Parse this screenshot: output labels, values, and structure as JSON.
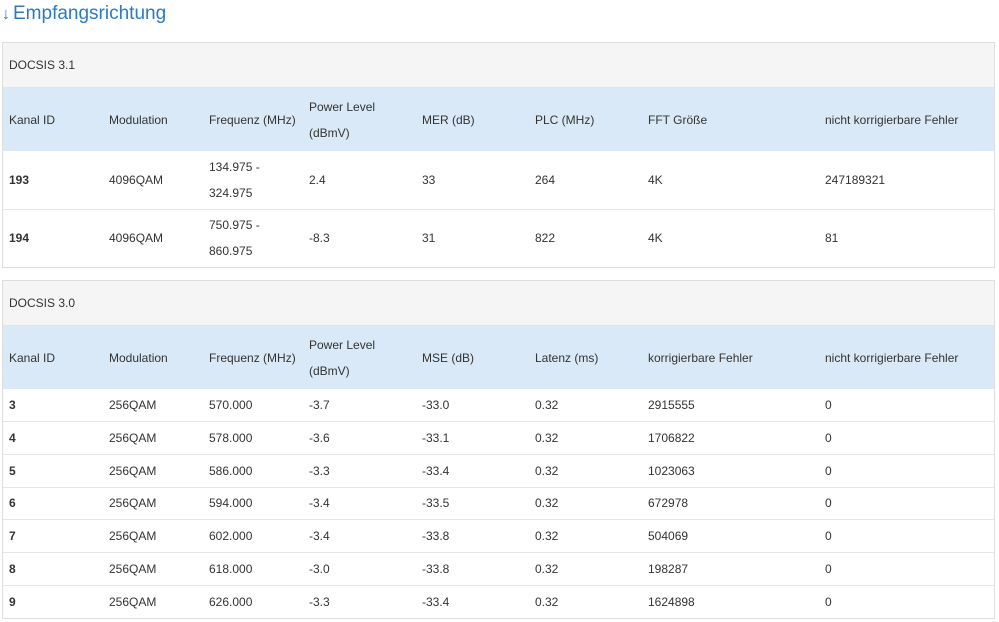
{
  "heading": {
    "arrow": "↓",
    "text": "Empfangsrichtung"
  },
  "docsis31": {
    "title": "DOCSIS 3.1",
    "columns": [
      "Kanal ID",
      "Modulation",
      "Frequenz (MHz)",
      "Power Level (dBmV)",
      "MER (dB)",
      "PLC (MHz)",
      "FFT Größe",
      "nicht korrigierbare Fehler"
    ],
    "rows": [
      [
        "193",
        "4096QAM",
        "134.975 - 324.975",
        "2.4",
        "33",
        "264",
        "4K",
        "247189321"
      ],
      [
        "194",
        "4096QAM",
        "750.975 - 860.975",
        "-8.3",
        "31",
        "822",
        "4K",
        "81"
      ]
    ]
  },
  "docsis30": {
    "title": "DOCSIS 3.0",
    "columns": [
      "Kanal ID",
      "Modulation",
      "Frequenz (MHz)",
      "Power Level (dBmV)",
      "MSE (dB)",
      "Latenz (ms)",
      "korrigierbare Fehler",
      "nicht korrigierbare Fehler"
    ],
    "rows": [
      [
        "3",
        "256QAM",
        "570.000",
        "-3.7",
        "-33.0",
        "0.32",
        "2915555",
        "0"
      ],
      [
        "4",
        "256QAM",
        "578.000",
        "-3.6",
        "-33.1",
        "0.32",
        "1706822",
        "0"
      ],
      [
        "5",
        "256QAM",
        "586.000",
        "-3.3",
        "-33.4",
        "0.32",
        "1023063",
        "0"
      ],
      [
        "6",
        "256QAM",
        "594.000",
        "-3.4",
        "-33.5",
        "0.32",
        "672978",
        "0"
      ],
      [
        "7",
        "256QAM",
        "602.000",
        "-3.4",
        "-33.8",
        "0.32",
        "504069",
        "0"
      ],
      [
        "8",
        "256QAM",
        "618.000",
        "-3.0",
        "-33.8",
        "0.32",
        "198287",
        "0"
      ],
      [
        "9",
        "256QAM",
        "626.000",
        "-3.3",
        "-33.4",
        "0.32",
        "1624898",
        "0"
      ]
    ]
  }
}
